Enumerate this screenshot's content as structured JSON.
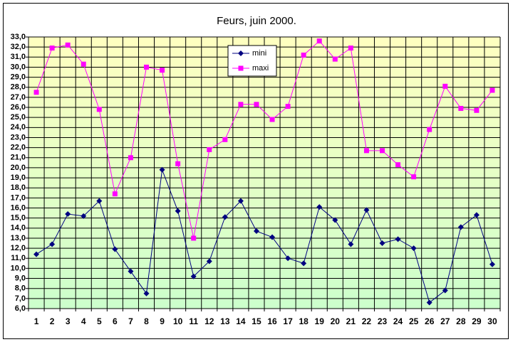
{
  "chart_data": {
    "type": "line",
    "title": "Feurs, juin 2000.",
    "categories": [
      "1",
      "2",
      "3",
      "4",
      "5",
      "6",
      "7",
      "8",
      "9",
      "10",
      "11",
      "12",
      "13",
      "14",
      "15",
      "16",
      "17",
      "18",
      "19",
      "20",
      "21",
      "22",
      "23",
      "24",
      "25",
      "26",
      "27",
      "28",
      "29",
      "30"
    ],
    "series": [
      {
        "name": "mini",
        "color": "#000080",
        "marker": "diamond",
        "values": [
          11.4,
          12.4,
          15.4,
          15.2,
          16.7,
          11.9,
          9.7,
          7.5,
          19.8,
          15.7,
          9.2,
          10.7,
          15.1,
          16.7,
          13.7,
          13.1,
          11.0,
          10.5,
          16.1,
          14.8,
          12.4,
          15.8,
          12.5,
          12.9,
          12.0,
          6.6,
          7.8,
          14.1,
          15.3,
          10.4
        ]
      },
      {
        "name": "maxi",
        "color": "#ff00ff",
        "marker": "square",
        "values": [
          27.5,
          31.9,
          32.2,
          30.3,
          25.8,
          17.4,
          21.0,
          30.0,
          29.7,
          20.4,
          13.0,
          21.8,
          22.8,
          26.3,
          26.3,
          24.8,
          26.1,
          31.2,
          32.6,
          30.8,
          31.9,
          21.7,
          21.7,
          20.3,
          19.1,
          23.8,
          28.1,
          25.9,
          25.7,
          27.7
        ]
      }
    ],
    "ylim": [
      6,
      33
    ],
    "yticks": [
      {
        "value": 6,
        "label": "6,0"
      },
      {
        "value": 7,
        "label": "7,0"
      },
      {
        "value": 8,
        "label": "8,0"
      },
      {
        "value": 9,
        "label": "9,0"
      },
      {
        "value": 10,
        "label": "10,0"
      },
      {
        "value": 11,
        "label": "11,0"
      },
      {
        "value": 12,
        "label": "12,0"
      },
      {
        "value": 13,
        "label": "13,0"
      },
      {
        "value": 14,
        "label": "14,0"
      },
      {
        "value": 15,
        "label": "15,0"
      },
      {
        "value": 16,
        "label": "16,0"
      },
      {
        "value": 17,
        "label": "17,0"
      },
      {
        "value": 18,
        "label": "18,0"
      },
      {
        "value": 19,
        "label": "19,0"
      },
      {
        "value": 20,
        "label": "20,0"
      },
      {
        "value": 21,
        "label": "21,0"
      },
      {
        "value": 22,
        "label": "22,0"
      },
      {
        "value": 23,
        "label": "23,0"
      },
      {
        "value": 24,
        "label": "24,0"
      },
      {
        "value": 25,
        "label": "25,0"
      },
      {
        "value": 26,
        "label": "26,0"
      },
      {
        "value": 27,
        "label": "27,0"
      },
      {
        "value": 28,
        "label": "28,0"
      },
      {
        "value": 29,
        "label": "29,0"
      },
      {
        "value": 30,
        "label": "30,0"
      },
      {
        "value": 31,
        "label": "31,0"
      },
      {
        "value": 32,
        "label": "32,0"
      },
      {
        "value": 33,
        "label": "33,0"
      }
    ],
    "grid": true,
    "legend": "top"
  }
}
